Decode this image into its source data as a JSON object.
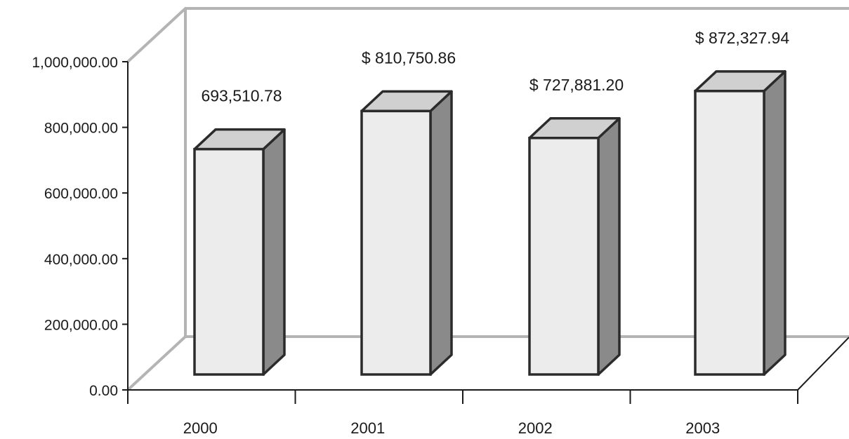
{
  "chart_data": {
    "type": "bar",
    "style": "3d-column",
    "title": "",
    "xlabel": "",
    "ylabel": "",
    "categories": [
      "2000",
      "2001",
      "2002",
      "2003"
    ],
    "values": [
      693510.78,
      810750.86,
      727881.2,
      872327.94
    ],
    "data_labels": [
      "693,510.78",
      "$ 810,750.86",
      "$ 727,881.20",
      "$ 872,327.94"
    ],
    "ylim": [
      0,
      1000000
    ],
    "yticks": [
      0,
      200000,
      400000,
      600000,
      800000,
      1000000
    ],
    "ytick_labels": [
      "0.00",
      "200,000.00",
      "400,000.00",
      "600,000.00",
      "800,000.00",
      "1,000,000.00"
    ],
    "grid": false,
    "legend": "none",
    "colors": {
      "bar_front": "#ececec",
      "bar_top": "#d0d0d0",
      "bar_side": "#8a8a8a",
      "bar_outline": "#2b2b2b",
      "walls": "#b4b4b4",
      "axis": "#1a1a1a"
    }
  }
}
